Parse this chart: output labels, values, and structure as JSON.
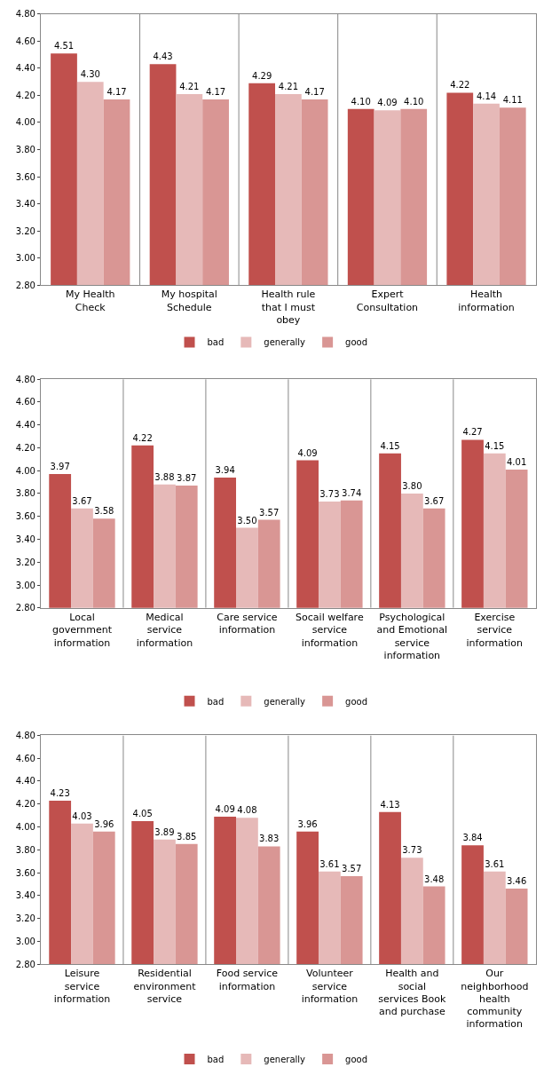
{
  "chart_data": [
    {
      "type": "bar",
      "categories": [
        "My Health Check",
        "My hospital Schedule",
        "Health rule that I must obey",
        "Expert Consultation",
        "Health information"
      ],
      "series": [
        {
          "name": "bad",
          "color": "#c0504d",
          "values": [
            4.51,
            4.43,
            4.29,
            4.1,
            4.22
          ],
          "value_labels": [
            "4.51",
            "4.43",
            "4.29",
            "4.10",
            "4.22"
          ]
        },
        {
          "name": "generally",
          "color": "#e6b9b8",
          "values": [
            4.3,
            4.21,
            4.21,
            4.09,
            4.14
          ],
          "value_labels": [
            "4.30",
            "4.21",
            "4.21",
            "4.09",
            "4.14"
          ]
        },
        {
          "name": "good",
          "color": "#d99694",
          "values": [
            4.17,
            4.17,
            4.17,
            4.1,
            4.11
          ],
          "value_labels": [
            "4.17",
            "4.17",
            "4.17",
            "4.10",
            "4.11"
          ]
        }
      ],
      "ylim": [
        2.8,
        4.8
      ],
      "yticks": [
        {
          "value": 2.8,
          "label": "2.80"
        },
        {
          "value": 3.0,
          "label": "3.00"
        },
        {
          "value": 3.2,
          "label": "3.20"
        },
        {
          "value": 3.4,
          "label": "3.40"
        },
        {
          "value": 3.6,
          "label": "3.60"
        },
        {
          "value": 3.8,
          "label": "3.80"
        },
        {
          "value": 4.0,
          "label": "4.00"
        },
        {
          "value": 4.2,
          "label": "4.20"
        },
        {
          "value": 4.4,
          "label": "4.40"
        },
        {
          "value": 4.6,
          "label": "4.60"
        },
        {
          "value": 4.8,
          "label": "4.80"
        }
      ],
      "grid": "x",
      "legend": "bottom"
    },
    {
      "type": "bar",
      "categories": [
        "Local government information",
        "Medical service information",
        "Care service information",
        "Socail welfare service information",
        "Psychological and Emotional service information",
        "Exercise service information"
      ],
      "series": [
        {
          "name": "bad",
          "color": "#c0504d",
          "values": [
            3.97,
            4.22,
            3.94,
            4.09,
            4.15,
            4.27
          ],
          "value_labels": [
            "3.97",
            "4.22",
            "3.94",
            "4.09",
            "4.15",
            "4.27"
          ]
        },
        {
          "name": "generally",
          "color": "#e6b9b8",
          "values": [
            3.67,
            3.88,
            3.5,
            3.73,
            3.8,
            4.15
          ],
          "value_labels": [
            "3.67",
            "3.88",
            "3.50",
            "3.73",
            "3.80",
            "4.15"
          ]
        },
        {
          "name": "good",
          "color": "#d99694",
          "values": [
            3.58,
            3.87,
            3.57,
            3.74,
            3.67,
            4.01
          ],
          "value_labels": [
            "3.58",
            "3.87",
            "3.57",
            "3.74",
            "3.67",
            "4.01"
          ]
        }
      ],
      "ylim": [
        2.8,
        4.8
      ],
      "yticks": [
        {
          "value": 2.8,
          "label": "2.80"
        },
        {
          "value": 3.0,
          "label": "3.00"
        },
        {
          "value": 3.2,
          "label": "3.20"
        },
        {
          "value": 3.4,
          "label": "3.40"
        },
        {
          "value": 3.6,
          "label": "3.60"
        },
        {
          "value": 3.8,
          "label": "3.80"
        },
        {
          "value": 4.0,
          "label": "4.00"
        },
        {
          "value": 4.2,
          "label": "4.20"
        },
        {
          "value": 4.4,
          "label": "4.40"
        },
        {
          "value": 4.6,
          "label": "4.60"
        },
        {
          "value": 4.8,
          "label": "4.80"
        }
      ],
      "grid": "x",
      "legend": "bottom"
    },
    {
      "type": "bar",
      "categories": [
        "Leisure service information",
        "Residential environment service",
        "Food service information",
        "Volunteer service information",
        "Health and social services Book and purchase",
        "Our neighborhood health community information"
      ],
      "series": [
        {
          "name": "bad",
          "color": "#c0504d",
          "values": [
            4.23,
            4.05,
            4.09,
            3.96,
            4.13,
            3.84
          ],
          "value_labels": [
            "4.23",
            "4.05",
            "4.09",
            "3.96",
            "4.13",
            "3.84"
          ]
        },
        {
          "name": "generally",
          "color": "#e6b9b8",
          "values": [
            4.03,
            3.89,
            4.08,
            3.61,
            3.73,
            3.61
          ],
          "value_labels": [
            "4.03",
            "3.89",
            "4.08",
            "3.61",
            "3.73",
            "3.61"
          ]
        },
        {
          "name": "good",
          "color": "#d99694",
          "values": [
            3.96,
            3.85,
            3.83,
            3.57,
            3.48,
            3.46
          ],
          "value_labels": [
            "3.96",
            "3.85",
            "3.83",
            "3.57",
            "3.48",
            "3.46"
          ]
        }
      ],
      "ylim": [
        2.8,
        4.8
      ],
      "yticks": [
        {
          "value": 2.8,
          "label": "2.80"
        },
        {
          "value": 3.0,
          "label": "3.00"
        },
        {
          "value": 3.2,
          "label": "3.20"
        },
        {
          "value": 3.4,
          "label": "3.40"
        },
        {
          "value": 3.6,
          "label": "3.60"
        },
        {
          "value": 3.8,
          "label": "3.80"
        },
        {
          "value": 4.0,
          "label": "4.00"
        },
        {
          "value": 4.2,
          "label": "4.20"
        },
        {
          "value": 4.4,
          "label": "4.40"
        },
        {
          "value": 4.6,
          "label": "4.60"
        },
        {
          "value": 4.8,
          "label": "4.80"
        }
      ],
      "grid": "x",
      "legend": "bottom"
    }
  ]
}
